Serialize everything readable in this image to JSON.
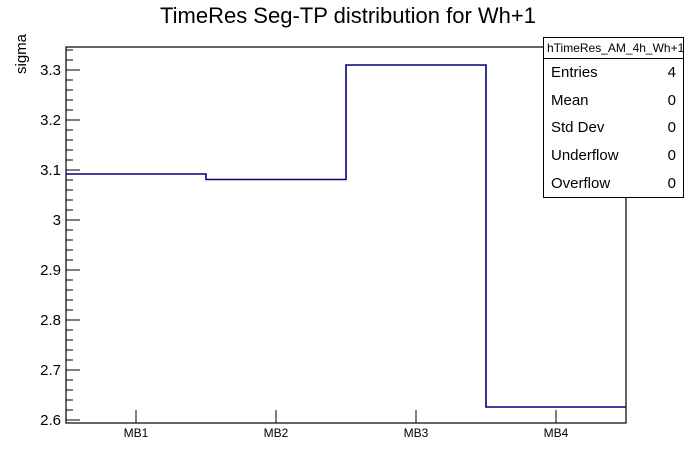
{
  "chart_data": {
    "type": "step-histogram",
    "title": "TimeRes Seg-TP distribution for Wh+1",
    "ylabel": "sigma",
    "xlabel": "",
    "categories": [
      "MB1",
      "MB2",
      "MB3",
      "MB4"
    ],
    "values": [
      3.092,
      3.081,
      3.31,
      2.626
    ],
    "ylim": [
      2.594,
      3.346
    ],
    "ytick_min": 2.6,
    "ytick_max": 3.3,
    "ytick_step": 0.1,
    "minor_tick_step": 0.02,
    "grid": false,
    "legend_position": "none",
    "line_color": "#000080",
    "frame_color": "#000000",
    "stats_box": {
      "header": "hTimeRes_AM_4h_Wh+1",
      "rows": [
        {
          "label": "Entries",
          "value": "4"
        },
        {
          "label": "Mean",
          "value": "0"
        },
        {
          "label": "Std Dev",
          "value": "0"
        },
        {
          "label": "Underflow",
          "value": "0"
        },
        {
          "label": "Overflow",
          "value": "0"
        }
      ]
    }
  }
}
